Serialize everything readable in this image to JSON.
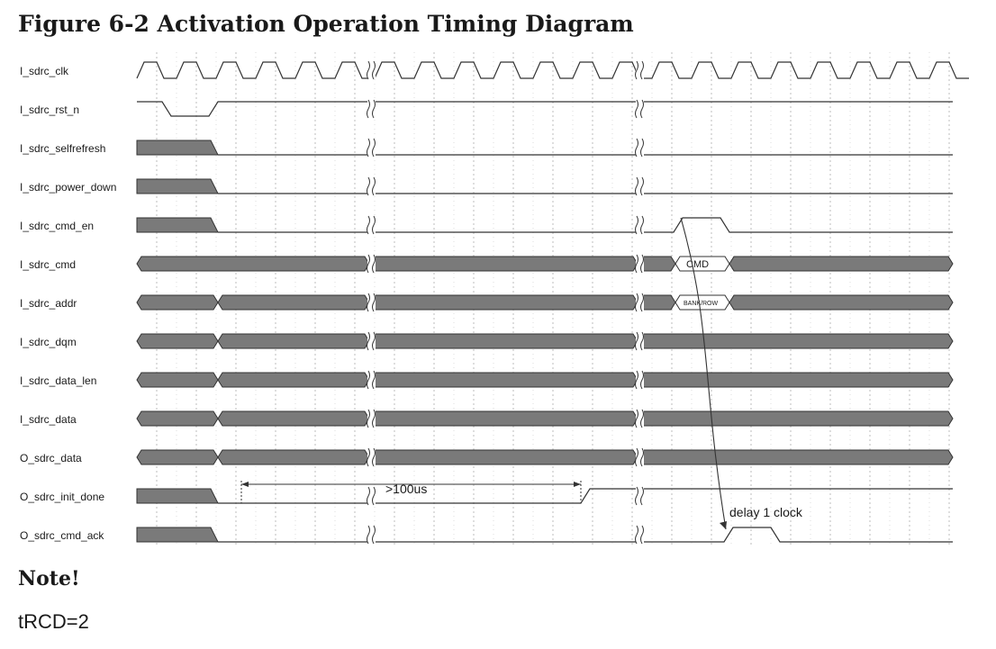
{
  "title": "Figure 6-2 Activation Operation Timing Diagram",
  "signals": [
    {
      "name": "I_sdrc_clk"
    },
    {
      "name": "I_sdrc_rst_n"
    },
    {
      "name": "I_sdrc_selfrefresh"
    },
    {
      "name": "I_sdrc_power_down"
    },
    {
      "name": "I_sdrc_cmd_en"
    },
    {
      "name": "I_sdrc_cmd",
      "label": "CMD"
    },
    {
      "name": "I_sdrc_addr",
      "label": "BANK/ROW"
    },
    {
      "name": "I_sdrc_dqm"
    },
    {
      "name": "I_sdrc_data_len"
    },
    {
      "name": "I_sdrc_data"
    },
    {
      "name": "O_sdrc_data"
    },
    {
      "name": "O_sdrc_init_done",
      "label": ">100us"
    },
    {
      "name": "O_sdrc_cmd_ack",
      "label": "delay 1 clock"
    }
  ],
  "note": {
    "heading": "Note!",
    "text": "tRCD=2"
  },
  "colors": {
    "bus_fill": "#7a7a7a",
    "line": "#333333",
    "grid": "#bdbdbd",
    "text": "#1a1a1a"
  }
}
